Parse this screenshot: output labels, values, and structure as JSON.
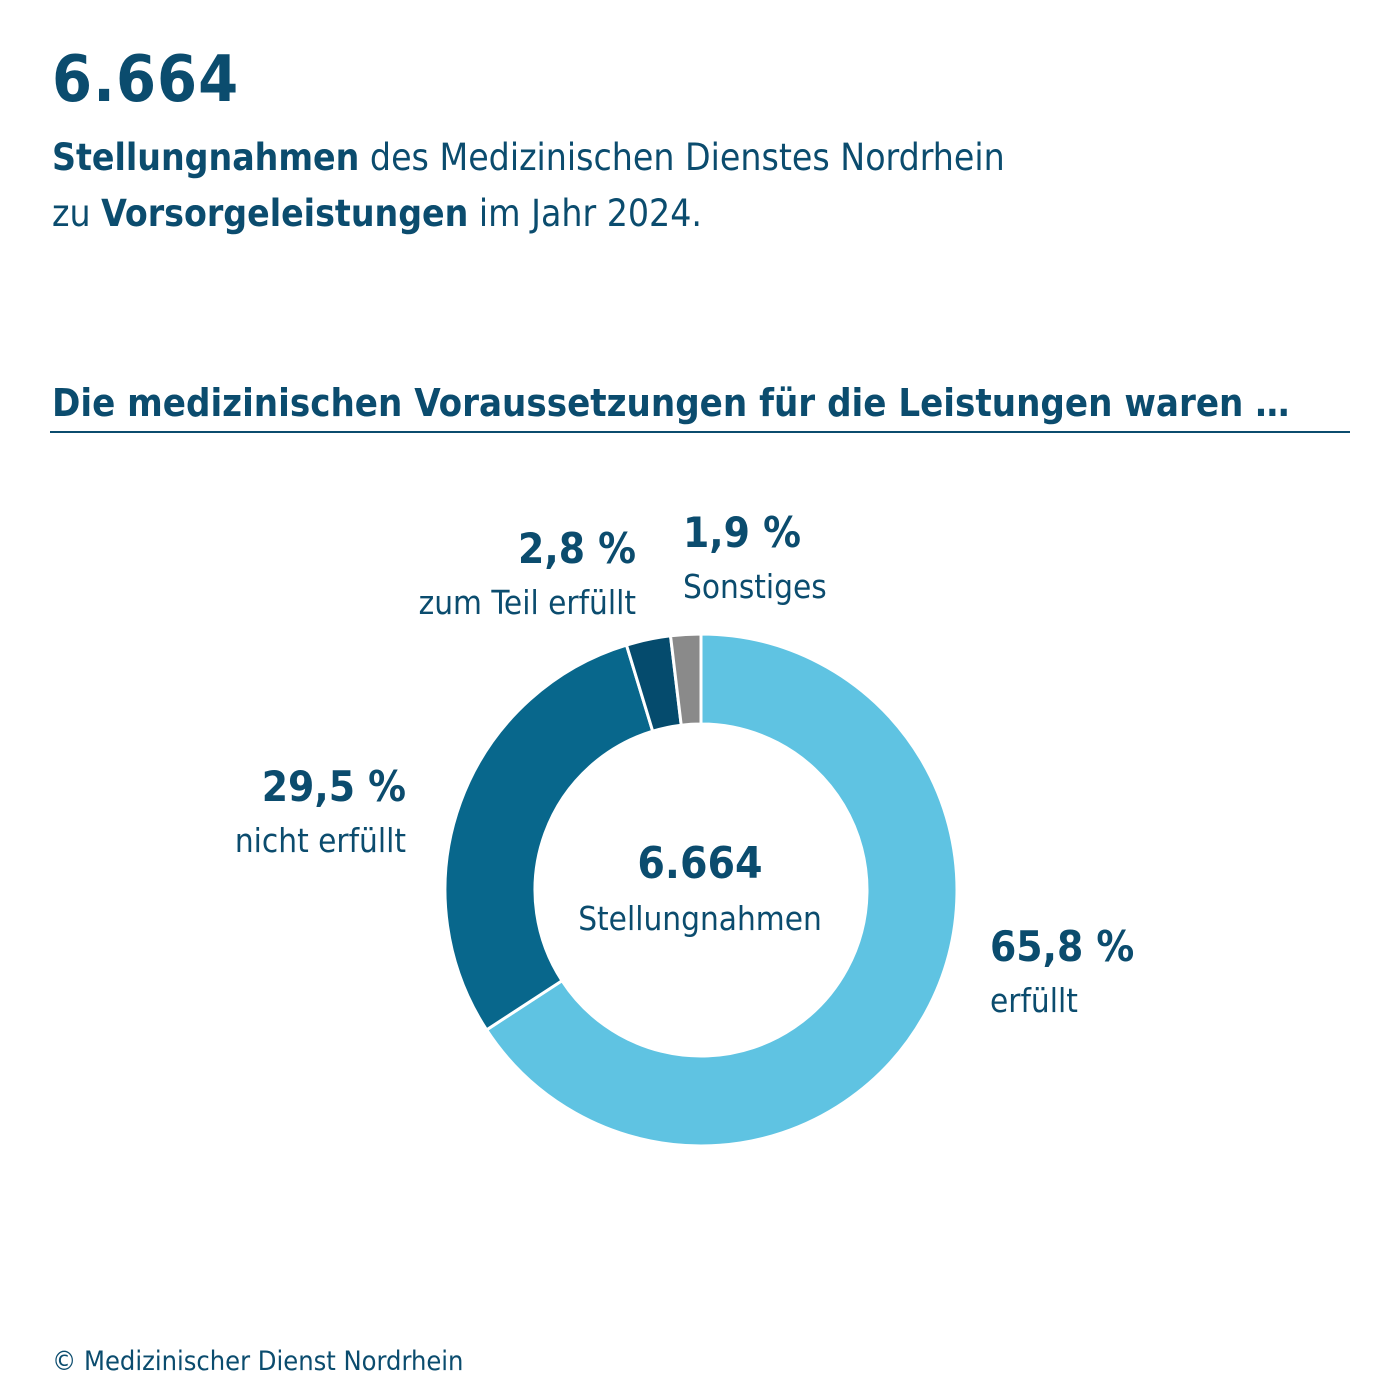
{
  "header": {
    "total": "6.664",
    "line1_bold": "Stellungnahmen",
    "line1_rest": " des Medizinischen Dienstes Nordrhein",
    "line2_start": "zu ",
    "line2_bold": "Vorsorgeleistungen",
    "line2_rest": " im Jahr 2024."
  },
  "section_title": "Die medizinischen Voraussetzungen für die Leistungen waren …",
  "center": {
    "number": "6.664",
    "label": "Stellungnahmen"
  },
  "labels": {
    "erfuellt": {
      "pct": "65,8 %",
      "cat": "erfüllt"
    },
    "nicht": {
      "pct": "29,5 %",
      "cat": "nicht erfüllt"
    },
    "teil": {
      "pct": "2,8 %",
      "cat": "zum Teil erfüllt"
    },
    "sonst": {
      "pct": "1,9 %",
      "cat": "Sonstiges"
    }
  },
  "footer": "© Medizinischer Dienst Nordrhein",
  "chart_data": {
    "type": "pie",
    "variant": "donut",
    "categories": [
      "erfüllt",
      "nicht erfüllt",
      "zum Teil erfüllt",
      "Sonstiges"
    ],
    "values": [
      65.8,
      29.5,
      2.8,
      1.9
    ],
    "unit": "%",
    "colors": [
      "#5fc3e2",
      "#08678c",
      "#054b6d",
      "#8a8a8a"
    ],
    "start": "top, clockwise",
    "total": 6664
  }
}
